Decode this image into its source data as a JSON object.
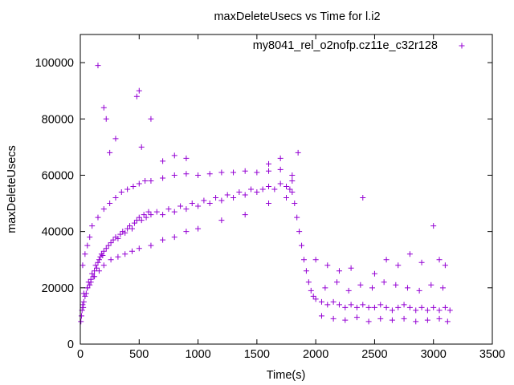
{
  "chart_data": {
    "type": "scatter",
    "title": "maxDeleteUsecs vs Time for l.i2",
    "xlabel": "Time(s)",
    "ylabel": "maxDeleteUsecs",
    "xlim": [
      0,
      3500
    ],
    "ylim": [
      0,
      110000
    ],
    "xticks": [
      0,
      500,
      1000,
      1500,
      2000,
      2500,
      3000,
      3500
    ],
    "yticks": [
      0,
      20000,
      40000,
      60000,
      80000,
      100000
    ],
    "grid": false,
    "legend_position": "top-right",
    "series": [
      {
        "name": "my8041_rel_o2nofp.cz11e_c32r128",
        "color": "#9400d3",
        "marker": "plus",
        "x": [
          5,
          10,
          15,
          20,
          25,
          30,
          40,
          50,
          60,
          70,
          80,
          90,
          100,
          110,
          120,
          130,
          140,
          150,
          160,
          170,
          180,
          190,
          200,
          220,
          240,
          260,
          280,
          300,
          320,
          340,
          360,
          380,
          400,
          420,
          440,
          460,
          480,
          500,
          520,
          540,
          560,
          580,
          600,
          650,
          700,
          750,
          800,
          850,
          900,
          950,
          1000,
          1050,
          1100,
          1150,
          1200,
          1250,
          1300,
          1350,
          1400,
          1450,
          1500,
          1550,
          1600,
          1650,
          1700,
          1750,
          1780,
          1800,
          1820,
          1840,
          1860,
          1880,
          1900,
          1920,
          1940,
          1960,
          1980,
          2000,
          2050,
          2100,
          2150,
          2200,
          2250,
          2300,
          2350,
          2400,
          2450,
          2500,
          2550,
          2600,
          2650,
          2700,
          2750,
          2800,
          2850,
          2900,
          2950,
          3000,
          3050,
          3100,
          3140,
          20,
          40,
          60,
          80,
          100,
          150,
          200,
          250,
          300,
          350,
          400,
          450,
          500,
          550,
          600,
          700,
          800,
          900,
          1000,
          1100,
          1200,
          1300,
          1400,
          1500,
          1600,
          1700,
          1800,
          30,
          60,
          90,
          120,
          160,
          200,
          260,
          320,
          380,
          440,
          500,
          600,
          700,
          800,
          900,
          1000,
          1200,
          1400,
          1600,
          1750,
          150,
          200,
          220,
          250,
          300,
          480,
          500,
          520,
          600,
          700,
          800,
          900,
          1600,
          1700,
          1800,
          1850,
          2000,
          2100,
          2200,
          2300,
          2400,
          2500,
          2600,
          2700,
          2800,
          2900,
          3000,
          3050,
          3100,
          2050,
          2150,
          2250,
          2350,
          2450,
          2550,
          2650,
          2750,
          2850,
          2950,
          3050,
          3120,
          2080,
          2180,
          2280,
          2380,
          2480,
          2580,
          2680,
          2780,
          2880,
          2980,
          3080
        ],
        "y": [
          8000,
          10000,
          12000,
          14000,
          13000,
          15000,
          17000,
          18000,
          20000,
          22000,
          21000,
          23000,
          25000,
          24000,
          26000,
          28000,
          27000,
          29000,
          30000,
          31000,
          32000,
          31500,
          33000,
          34000,
          35000,
          36000,
          37000,
          38000,
          37500,
          39000,
          40000,
          39500,
          41000,
          42000,
          41000,
          43000,
          44000,
          45000,
          44000,
          46000,
          45000,
          47000,
          46000,
          47000,
          46000,
          48000,
          47000,
          49000,
          48000,
          50000,
          49000,
          51000,
          50000,
          52000,
          51000,
          53000,
          52000,
          54000,
          53000,
          55000,
          54000,
          55000,
          56000,
          55000,
          57000,
          56000,
          55000,
          54000,
          50000,
          45000,
          40000,
          35000,
          30000,
          26000,
          22000,
          19000,
          17000,
          16000,
          15000,
          14000,
          15000,
          14000,
          13000,
          14000,
          13000,
          14000,
          13000,
          13000,
          14000,
          13000,
          12000,
          13000,
          14000,
          13000,
          12000,
          13000,
          12000,
          13000,
          12000,
          13000,
          12000,
          28000,
          32000,
          35000,
          38000,
          42000,
          45000,
          48000,
          50000,
          52000,
          54000,
          55000,
          56000,
          57000,
          58000,
          58000,
          59000,
          60000,
          60500,
          60000,
          60500,
          61000,
          61000,
          61500,
          61000,
          61500,
          62000,
          58000,
          18000,
          20000,
          22000,
          24000,
          26000,
          28000,
          30000,
          31000,
          32000,
          33000,
          34000,
          35000,
          37000,
          38000,
          40000,
          41000,
          44000,
          46000,
          50000,
          52000,
          99000,
          84000,
          80000,
          68000,
          73000,
          88000,
          90000,
          70000,
          80000,
          65000,
          67000,
          66000,
          64000,
          66000,
          60000,
          68000,
          30000,
          28000,
          26000,
          27000,
          52000,
          25000,
          30000,
          28000,
          32000,
          29000,
          42000,
          30000,
          28000,
          10000,
          9000,
          8500,
          9500,
          8000,
          9000,
          8500,
          9000,
          8000,
          8500,
          9000,
          8000,
          20000,
          22000,
          19000,
          21000,
          20000,
          22000,
          21000,
          20000,
          19000,
          21000,
          20000
        ]
      }
    ]
  }
}
